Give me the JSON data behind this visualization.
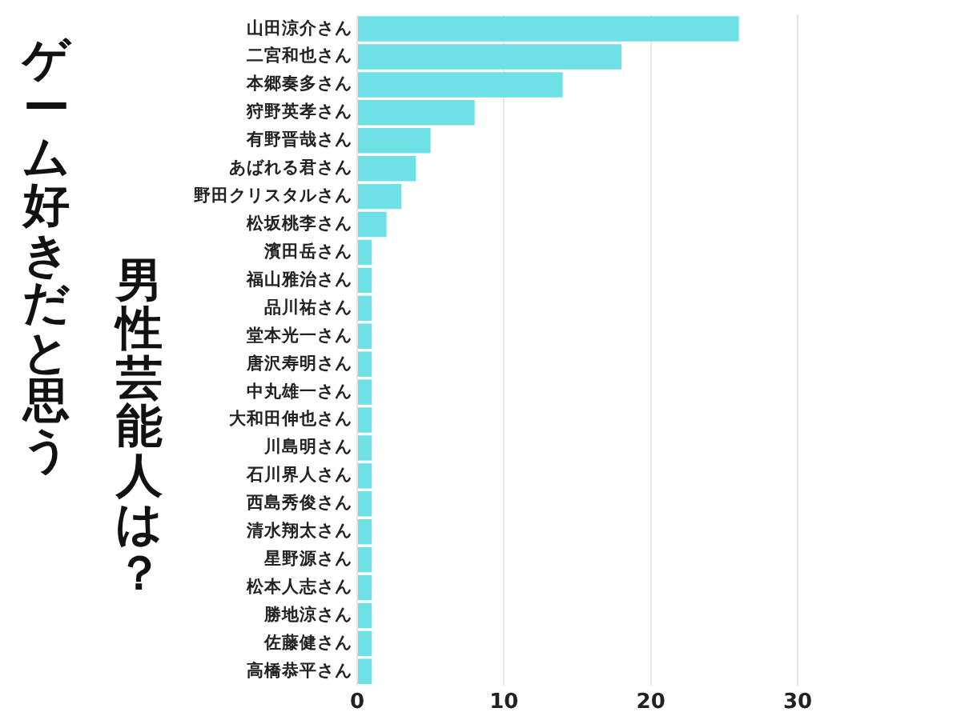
{
  "chart_data": {
    "type": "bar",
    "orientation": "horizontal",
    "title": "ゲーム好きだと思う",
    "subtitle": "男性芸能人は？",
    "categories": [
      "山田涼介さん",
      "二宮和也さん",
      "本郷奏多さん",
      "狩野英孝さん",
      "有野晋哉さん",
      "あばれる君さん",
      "野田クリスタルさん",
      "松坂桃李さん",
      "濱田岳さん",
      "福山雅治さん",
      "品川祐さん",
      "堂本光一さん",
      "唐沢寿明さん",
      "中丸雄一さん",
      "大和田伸也さん",
      "川島明さん",
      "石川界人さん",
      "西島秀俊さん",
      "清水翔太さん",
      "星野源さん",
      "松本人志さん",
      "勝地涼さん",
      "佐藤健さん",
      "高橋恭平さん"
    ],
    "values": [
      26,
      18,
      14,
      8,
      5,
      4,
      3,
      2,
      1,
      1,
      1,
      1,
      1,
      1,
      1,
      1,
      1,
      1,
      1,
      1,
      1,
      1,
      1,
      1
    ],
    "color": "#6ee0e6",
    "xlim": [
      0,
      30
    ],
    "xticks": [
      0,
      10,
      20,
      30
    ],
    "grid": "x",
    "legend": false
  }
}
